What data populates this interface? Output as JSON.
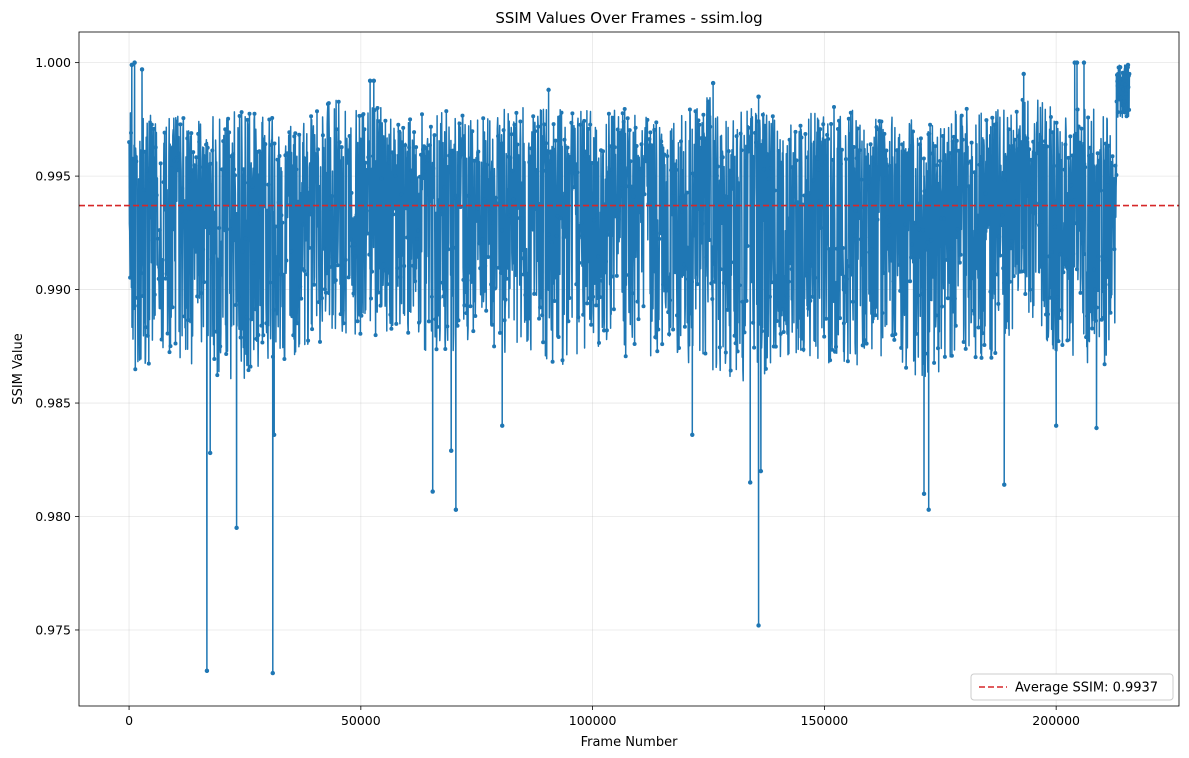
{
  "chart_data": {
    "type": "line",
    "title": "SSIM Values Over Frames - ssim.log",
    "xlabel": "Frame Number",
    "ylabel": "SSIM Value",
    "xlim": [
      -10800,
      226500
    ],
    "ylim": [
      0.97165,
      1.00135
    ],
    "xticks": [
      0,
      50000,
      100000,
      150000,
      200000
    ],
    "xtick_labels": [
      "0",
      "50000",
      "100000",
      "150000",
      "200000"
    ],
    "yticks": [
      0.975,
      0.98,
      0.985,
      0.99,
      0.995,
      1.0
    ],
    "ytick_labels": [
      "0.975",
      "0.980",
      "0.985",
      "0.990",
      "0.995",
      "1.000"
    ],
    "grid": true,
    "legend_position": "bottom-right",
    "frame_range": [
      0,
      215800
    ],
    "series": [
      {
        "color": "#1f77b4",
        "marker": "circle",
        "envelope": {
          "x": [
            0,
            2000,
            5000,
            10000,
            15000,
            20000,
            25000,
            30000,
            35000,
            40000,
            45000,
            50000,
            55000,
            60000,
            65000,
            70000,
            75000,
            80000,
            85000,
            90000,
            95000,
            100000,
            105000,
            110000,
            115000,
            120000,
            125000,
            130000,
            135000,
            140000,
            145000,
            150000,
            155000,
            160000,
            165000,
            170000,
            175000,
            180000,
            185000,
            190000,
            195000,
            200000,
            205000,
            210000,
            213000
          ],
          "high": [
            0.9998,
            0.9975,
            0.9978,
            0.9977,
            0.9975,
            0.9978,
            0.9979,
            0.9976,
            0.9975,
            0.9978,
            0.9985,
            0.9978,
            0.9985,
            0.9976,
            0.998,
            0.9979,
            0.9975,
            0.998,
            0.9982,
            0.9985,
            0.9978,
            0.998,
            0.9983,
            0.9976,
            0.9977,
            0.9978,
            0.9985,
            0.9978,
            0.998,
            0.9978,
            0.9976,
            0.998,
            0.9982,
            0.9978,
            0.9976,
            0.9978,
            0.9977,
            0.9982,
            0.9978,
            0.9982,
            0.9985,
            0.998,
            0.998,
            0.9985,
            0.9975
          ],
          "low": [
            0.988,
            0.9852,
            0.9872,
            0.987,
            0.9865,
            0.9855,
            0.986,
            0.9868,
            0.987,
            0.9875,
            0.9878,
            0.988,
            0.9875,
            0.988,
            0.987,
            0.9872,
            0.9878,
            0.9872,
            0.987,
            0.9868,
            0.9865,
            0.9875,
            0.987,
            0.9868,
            0.9872,
            0.9868,
            0.986,
            0.986,
            0.9855,
            0.987,
            0.9872,
            0.9868,
            0.9865,
            0.9868,
            0.987,
            0.986,
            0.9858,
            0.9872,
            0.9868,
            0.9875,
            0.9878,
            0.9872,
            0.987,
            0.9862,
            0.988
          ]
        },
        "spikes": [
          {
            "x": 16800,
            "y": 0.9732
          },
          {
            "x": 17500,
            "y": 0.9828
          },
          {
            "x": 23200,
            "y": 0.9795
          },
          {
            "x": 31000,
            "y": 0.9731
          },
          {
            "x": 31300,
            "y": 0.9836
          },
          {
            "x": 65500,
            "y": 0.9811
          },
          {
            "x": 69500,
            "y": 0.9829
          },
          {
            "x": 70500,
            "y": 0.9803
          },
          {
            "x": 80500,
            "y": 0.984
          },
          {
            "x": 121500,
            "y": 0.9836
          },
          {
            "x": 134000,
            "y": 0.9815
          },
          {
            "x": 135800,
            "y": 0.9752
          },
          {
            "x": 136300,
            "y": 0.982
          },
          {
            "x": 171500,
            "y": 0.981
          },
          {
            "x": 172500,
            "y": 0.9803
          },
          {
            "x": 188800,
            "y": 0.9814
          },
          {
            "x": 200000,
            "y": 0.984
          },
          {
            "x": 208700,
            "y": 0.9839
          }
        ],
        "peaks": [
          {
            "x": 600,
            "y": 0.9999
          },
          {
            "x": 1200,
            "y": 1.0
          },
          {
            "x": 2800,
            "y": 0.9997
          },
          {
            "x": 52000,
            "y": 0.9992
          },
          {
            "x": 52800,
            "y": 0.9992
          },
          {
            "x": 90500,
            "y": 0.9988
          },
          {
            "x": 126000,
            "y": 0.9991
          },
          {
            "x": 135800,
            "y": 0.9985
          },
          {
            "x": 193000,
            "y": 0.9995
          },
          {
            "x": 204000,
            "y": 1.0
          },
          {
            "x": 204500,
            "y": 1.0
          },
          {
            "x": 206000,
            "y": 1.0
          },
          {
            "x": 213800,
            "y": 0.9998
          },
          {
            "x": 215500,
            "y": 0.9999
          }
        ],
        "tail_band": {
          "x": [
            213000,
            215800
          ],
          "low": 0.9975,
          "high": 0.9999
        }
      },
      {
        "name": "Average SSIM: 0.9937",
        "type": "hline",
        "y": 0.9937,
        "color": "#d62728",
        "style": "dashed"
      }
    ]
  }
}
